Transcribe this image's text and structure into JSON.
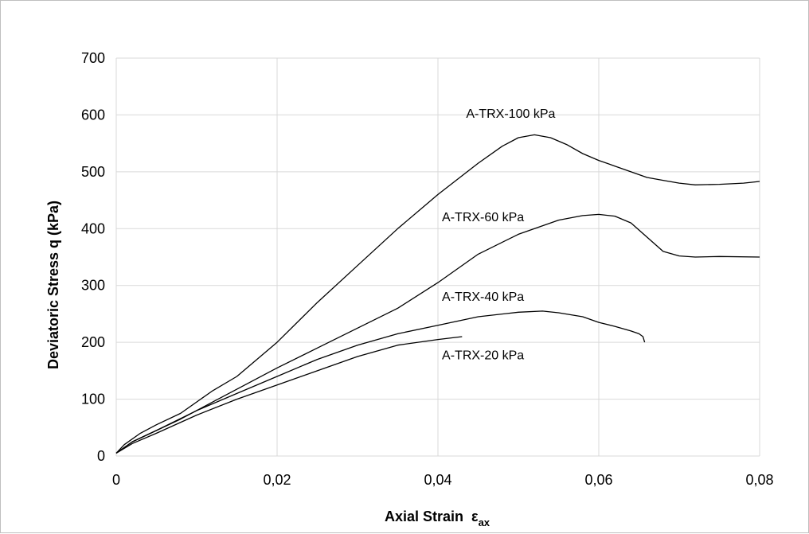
{
  "chart_data": {
    "type": "line",
    "title": "",
    "xlabel": "Axial Strain",
    "xlabel_symbol": "ε",
    "xlabel_subscript": "ax",
    "ylabel": "Deviatoric Stress  q (kPa)",
    "xlim": [
      0,
      0.08
    ],
    "ylim": [
      0,
      700
    ],
    "x_ticks": [
      0,
      0.02,
      0.04,
      0.06,
      0.08
    ],
    "x_tick_labels": [
      "0",
      "0,02",
      "0,04",
      "0,06",
      "0,08"
    ],
    "y_ticks": [
      0,
      100,
      200,
      300,
      400,
      500,
      600,
      700
    ],
    "y_tick_labels": [
      "0",
      "100",
      "200",
      "300",
      "400",
      "500",
      "600",
      "700"
    ],
    "grid": true,
    "legend": "none",
    "series": [
      {
        "name": "A-TRX-100 kPa",
        "x": [
          0,
          0.001,
          0.003,
          0.005,
          0.008,
          0.01,
          0.012,
          0.015,
          0.02,
          0.025,
          0.03,
          0.035,
          0.04,
          0.045,
          0.048,
          0.05,
          0.052,
          0.054,
          0.056,
          0.058,
          0.06,
          0.062,
          0.064,
          0.066,
          0.068,
          0.07,
          0.072,
          0.075,
          0.078,
          0.08
        ],
        "y": [
          5,
          20,
          40,
          55,
          75,
          95,
          115,
          140,
          200,
          270,
          335,
          400,
          460,
          515,
          545,
          560,
          565,
          560,
          548,
          532,
          520,
          510,
          500,
          490,
          485,
          480,
          477,
          478,
          480,
          483
        ]
      },
      {
        "name": "A-TRX-60 kPa",
        "x": [
          0,
          0.002,
          0.005,
          0.008,
          0.012,
          0.016,
          0.02,
          0.025,
          0.03,
          0.035,
          0.04,
          0.045,
          0.05,
          0.055,
          0.058,
          0.06,
          0.062,
          0.064,
          0.066,
          0.068,
          0.07,
          0.072,
          0.075,
          0.08
        ],
        "y": [
          5,
          25,
          45,
          65,
          95,
          125,
          155,
          190,
          225,
          260,
          305,
          355,
          390,
          415,
          423,
          425,
          422,
          410,
          385,
          360,
          352,
          350,
          351,
          350
        ]
      },
      {
        "name": "A-TRX-40 kPa",
        "x": [
          0,
          0.002,
          0.005,
          0.01,
          0.015,
          0.02,
          0.025,
          0.03,
          0.035,
          0.04,
          0.045,
          0.05,
          0.053,
          0.055,
          0.058,
          0.06,
          0.062,
          0.064,
          0.065,
          0.0655,
          0.0657
        ],
        "y": [
          5,
          25,
          45,
          80,
          110,
          140,
          170,
          195,
          215,
          230,
          245,
          253,
          255,
          252,
          245,
          235,
          228,
          220,
          215,
          210,
          200
        ]
      },
      {
        "name": "A-TRX-20 kPa",
        "x": [
          0,
          0.002,
          0.005,
          0.01,
          0.015,
          0.02,
          0.025,
          0.03,
          0.035,
          0.04,
          0.043
        ],
        "y": [
          5,
          22,
          40,
          72,
          100,
          125,
          150,
          175,
          195,
          205,
          210
        ]
      }
    ]
  }
}
